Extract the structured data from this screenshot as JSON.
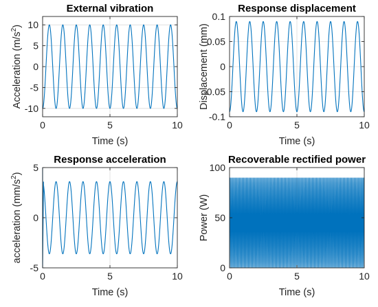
{
  "chart_data": [
    {
      "type": "line",
      "title": "External vibration",
      "xlabel": "Time (s)",
      "ylabel": "Acceleration (m/s",
      "ylabel_sup": "2",
      "ylabel_end": ")",
      "xlim": [
        0,
        10
      ],
      "ylim": [
        -12,
        12
      ],
      "xticks": [
        0,
        5,
        10
      ],
      "yticks": [
        -10,
        -5,
        0,
        5,
        10
      ],
      "xtick_labels": [
        "0",
        "5",
        "10"
      ],
      "ytick_labels": [
        "-10",
        "-5",
        "0",
        "5",
        "10"
      ],
      "grid": true,
      "series": [
        {
          "color": "#0072bd",
          "waveform": "cosine",
          "amplitude": 10,
          "offset": 0,
          "frequency_hz": 1,
          "phase_rad": 3.1416,
          "x_start": 0,
          "x_end": 10
        }
      ]
    },
    {
      "type": "line",
      "title": "Response displacement",
      "xlabel": "Time (s)",
      "ylabel": "Displacement (mm)",
      "ylabel_sup": "",
      "ylabel_end": "",
      "xlim": [
        0,
        10
      ],
      "ylim": [
        -0.1,
        0.1
      ],
      "xticks": [
        0,
        5,
        10
      ],
      "yticks": [
        -0.1,
        -0.05,
        0,
        0.05,
        0.1
      ],
      "xtick_labels": [
        "0",
        "5",
        "10"
      ],
      "ytick_labels": [
        "-0.1",
        "-0.05",
        "0",
        "0.05",
        "0.1"
      ],
      "grid": true,
      "series": [
        {
          "color": "#0072bd",
          "waveform": "cosine",
          "amplitude": 0.09,
          "offset": 0,
          "frequency_hz": 1,
          "phase_rad": 3.1416,
          "x_start": 0,
          "x_end": 10
        }
      ]
    },
    {
      "type": "line",
      "title": "Response acceleration",
      "xlabel": "Time (s)",
      "ylabel": "acceleration (mm/s",
      "ylabel_sup": "2",
      "ylabel_end": ")",
      "xlim": [
        0,
        10
      ],
      "ylim": [
        -5,
        5
      ],
      "xticks": [
        0,
        5,
        10
      ],
      "yticks": [
        -5,
        0,
        5
      ],
      "xtick_labels": [
        "0",
        "5",
        "10"
      ],
      "ytick_labels": [
        "-5",
        "0",
        "5"
      ],
      "grid": true,
      "series": [
        {
          "color": "#0072bd",
          "waveform": "cosine",
          "amplitude": 3.6,
          "offset": 0,
          "frequency_hz": 1,
          "phase_rad": 0,
          "x_start": 0.07,
          "x_end": 10,
          "initial_points": [
            [
              0,
              5
            ],
            [
              0,
              -5
            ],
            [
              0.07,
              3.6
            ]
          ]
        }
      ]
    },
    {
      "type": "line",
      "title": "Recoverable rectified power",
      "xlabel": "Time (s)",
      "ylabel": "Power (W)",
      "ylabel_sup": "",
      "ylabel_end": "",
      "xlim": [
        0,
        10
      ],
      "ylim": [
        0,
        100
      ],
      "xticks": [
        0,
        5,
        10
      ],
      "yticks": [
        0,
        50,
        100
      ],
      "xtick_labels": [
        "0",
        "5",
        "10"
      ],
      "ytick_labels": [
        "0",
        "50",
        "100"
      ],
      "grid": true,
      "series": [
        {
          "color": "#0072bd",
          "waveform": "sine_squared",
          "amplitude": 90,
          "offset": 0,
          "frequency_hz": 5,
          "phase_rad": 0,
          "x_start": 0,
          "x_end": 10
        }
      ]
    }
  ]
}
